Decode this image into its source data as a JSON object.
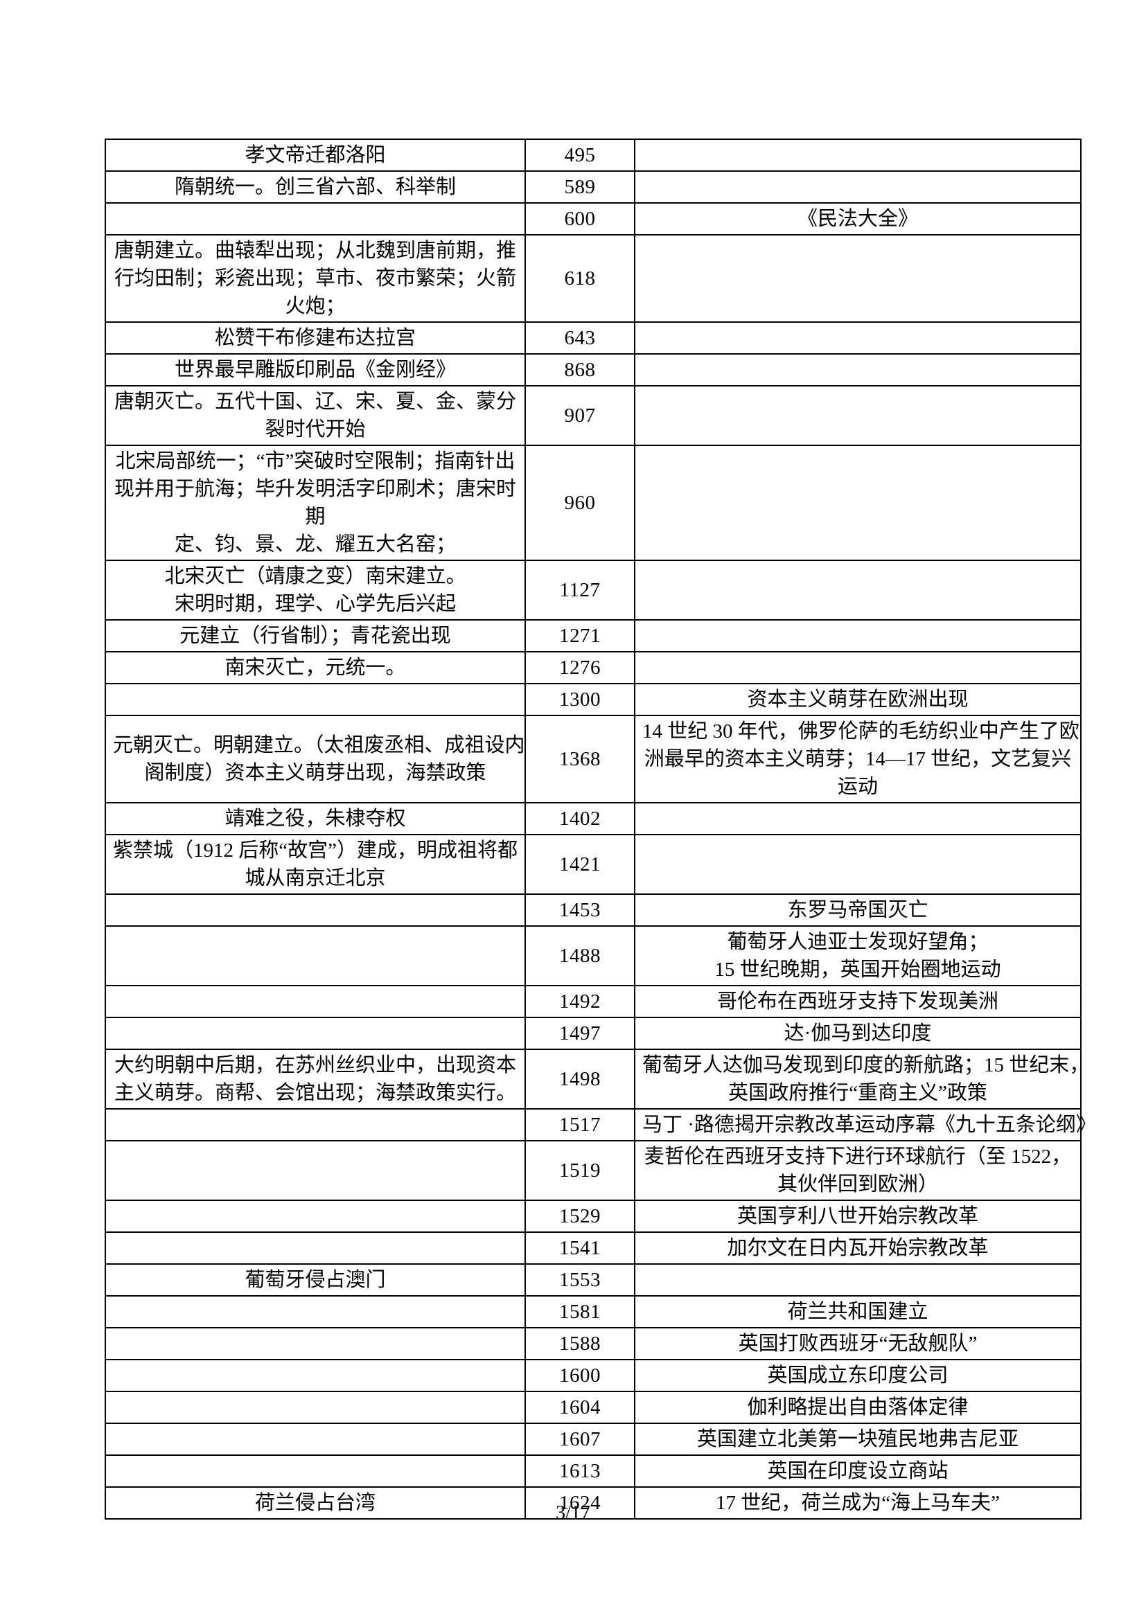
{
  "page": {
    "number_label": "3/17"
  },
  "table": {
    "columns": [
      "china-events",
      "year",
      "world-events"
    ],
    "rows": [
      {
        "china": [
          "孝文帝迁都洛阳"
        ],
        "year": "495",
        "world": []
      },
      {
        "china": [
          "隋朝统一。创三省六部、科举制"
        ],
        "year": "589",
        "world": []
      },
      {
        "china": [],
        "year": "600",
        "world": [
          "《民法大全》"
        ]
      },
      {
        "china": [
          "唐朝建立。曲辕犁出现；从北魏到唐前期，推",
          "行均田制；彩瓷出现；草市、夜市繁荣；火箭",
          "火炮；"
        ],
        "year": "618",
        "world": []
      },
      {
        "china": [
          "松赞干布修建布达拉宫"
        ],
        "year": "643",
        "world": []
      },
      {
        "china": [
          "世界最早雕版印刷品《金刚经》"
        ],
        "year": "868",
        "world": []
      },
      {
        "china": [
          "唐朝灭亡。五代十国、辽、宋、夏、金、蒙分",
          "裂时代开始"
        ],
        "year": "907",
        "world": []
      },
      {
        "china": [
          "北宋局部统一；“市”突破时空限制；指南针出",
          "现并用于航海；毕升发明活字印刷术；唐宋时",
          "期",
          "定、钧、景、龙、耀五大名窑；"
        ],
        "year": "960",
        "world": []
      },
      {
        "china": [
          "北宋灭亡（靖康之变）南宋建立。",
          "宋明时期，理学、心学先后兴起"
        ],
        "year": "1127",
        "world": []
      },
      {
        "china": [
          "元建立（行省制）；青花瓷出现"
        ],
        "year": "1271",
        "world": []
      },
      {
        "china": [
          "南宋灭亡，元统一。"
        ],
        "year": "1276",
        "world": []
      },
      {
        "china": [],
        "year": "1300",
        "world": [
          "资本主义萌芽在欧洲出现"
        ]
      },
      {
        "china": [
          "元朝灭亡。明朝建立。（太祖废丞相、成祖设内",
          "阁制度）资本主义萌芽出现，海禁政策"
        ],
        "year": "1368",
        "world": [
          "14 世纪 30 年代，佛罗伦萨的毛纺织业中产生了欧",
          "洲最早的资本主义萌芽；14—17 世纪，文艺复兴",
          "运动"
        ]
      },
      {
        "china": [
          "靖难之役，朱棣夺权"
        ],
        "year": "1402",
        "world": []
      },
      {
        "china": [
          "紫禁城（1912 后称“故宫”）建成，明成祖将都",
          "城从南京迁北京"
        ],
        "year": "1421",
        "world": []
      },
      {
        "china": [],
        "year": "1453",
        "world": [
          "东罗马帝国灭亡"
        ]
      },
      {
        "china": [],
        "year": "1488",
        "world": [
          "葡萄牙人迪亚士发现好望角；",
          "15 世纪晚期，英国开始圈地运动"
        ]
      },
      {
        "china": [],
        "year": "1492",
        "world": [
          "哥伦布在西班牙支持下发现美洲"
        ]
      },
      {
        "china": [],
        "year": "1497",
        "world": [
          "达·伽马到达印度"
        ]
      },
      {
        "china": [
          "大约明朝中后期，在苏州丝织业中，出现资本",
          "主义萌芽。商帮、会馆出现；海禁政策实行。"
        ],
        "year": "1498",
        "world": [
          "葡萄牙人达伽马发现到印度的新航路；15 世纪末，",
          "英国政府推行“重商主义”政策"
        ]
      },
      {
        "china": [],
        "year": "1517",
        "world": [
          "马丁 ·路德揭开宗教改革运动序幕《九十五条论纲》"
        ]
      },
      {
        "china": [],
        "year": "1519",
        "world": [
          "麦哲伦在西班牙支持下进行环球航行（至 1522，",
          "其伙伴回到欧洲）"
        ]
      },
      {
        "china": [],
        "year": "1529",
        "world": [
          "英国亨利八世开始宗教改革"
        ]
      },
      {
        "china": [],
        "year": "1541",
        "world": [
          "加尔文在日内瓦开始宗教改革"
        ]
      },
      {
        "china": [
          "葡萄牙侵占澳门"
        ],
        "year": "1553",
        "world": []
      },
      {
        "china": [],
        "year": "1581",
        "world": [
          "荷兰共和国建立"
        ]
      },
      {
        "china": [],
        "year": "1588",
        "world": [
          "英国打败西班牙“无敌舰队”"
        ]
      },
      {
        "china": [],
        "year": "1600",
        "world": [
          "英国成立东印度公司"
        ]
      },
      {
        "china": [],
        "year": "1604",
        "world": [
          "伽利略提出自由落体定律"
        ]
      },
      {
        "china": [],
        "year": "1607",
        "world": [
          "英国建立北美第一块殖民地弗吉尼亚"
        ]
      },
      {
        "china": [],
        "year": "1613",
        "world": [
          "英国在印度设立商站"
        ]
      },
      {
        "china": [
          "荷兰侵占台湾"
        ],
        "year": "1624",
        "world": [
          "17 世纪，荷兰成为“海上马车夫”"
        ]
      }
    ]
  }
}
